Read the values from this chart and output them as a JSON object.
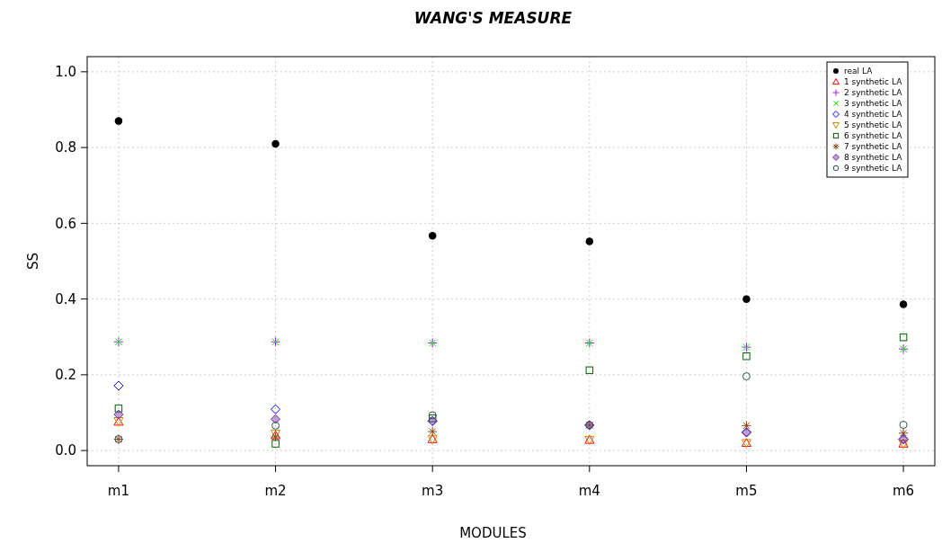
{
  "chart_data": {
    "type": "scatter",
    "title": "WANG'S MEASURE",
    "xlabel": "MODULES",
    "ylabel": "SS",
    "categories": [
      "m1",
      "m2",
      "m3",
      "m4",
      "m5",
      "m6"
    ],
    "ylim": [
      -0.04,
      1.04
    ],
    "yticks": [
      {
        "value": 0,
        "label": "0.0"
      },
      0.2,
      0.4,
      0.6,
      0.8,
      {
        "value": 1,
        "label": "1.0"
      }
    ],
    "grid": true,
    "legend": "top right",
    "series": [
      {
        "name": "real LA",
        "color": "#000000",
        "marker": "circle",
        "values": [
          0.87,
          0.81,
          0.567,
          0.552,
          0.4,
          0.386
        ]
      },
      {
        "name": "1 synthetic LA",
        "color": "#ff0000",
        "marker": "triangle",
        "values": [
          0.076,
          0.04,
          0.03,
          0.028,
          0.02,
          0.018
        ]
      },
      {
        "name": "2 synthetic LA",
        "color": "#a020f0",
        "marker": "cross",
        "values": [
          0.287,
          0.287,
          0.284,
          0.284,
          0.273,
          0.268
        ]
      },
      {
        "name": "3 synthetic LA",
        "color": "#00ff00",
        "marker": "cross",
        "values": [
          0.287,
          0.287,
          0.284,
          0.284,
          0.273,
          0.268
        ]
      },
      {
        "name": "4 synthetic LA",
        "color": "#0000ff",
        "marker": "diamond",
        "values": [
          0.171,
          0.109,
          0.078,
          0.067,
          0.048,
          0.03
        ]
      },
      {
        "name": "5 synthetic LA",
        "color": "#cc8800",
        "marker": "triangle",
        "values": [
          0.078,
          0.045,
          0.03,
          0.028,
          0.02,
          0.018
        ]
      },
      {
        "name": "6 synthetic LA",
        "color": "#006400",
        "marker": "square",
        "values": [
          0.111,
          0.018,
          0.085,
          0.212,
          0.249,
          0.299
        ]
      },
      {
        "name": "7 synthetic LA",
        "color": "#8b4513",
        "marker": "cross",
        "values": [
          0.03,
          0.036,
          0.05,
          0.067,
          0.066,
          0.046
        ]
      },
      {
        "name": "8 synthetic LA",
        "color": "#7030a0",
        "marker": "diamond",
        "values": [
          0.095,
          0.083,
          0.078,
          0.067,
          0.048,
          0.03
        ]
      },
      {
        "name": "9 synthetic LA",
        "color": "#2f4f4f",
        "marker": "circle",
        "values": [
          0.03,
          0.066,
          0.093,
          0.067,
          0.196,
          0.068
        ]
      }
    ]
  }
}
